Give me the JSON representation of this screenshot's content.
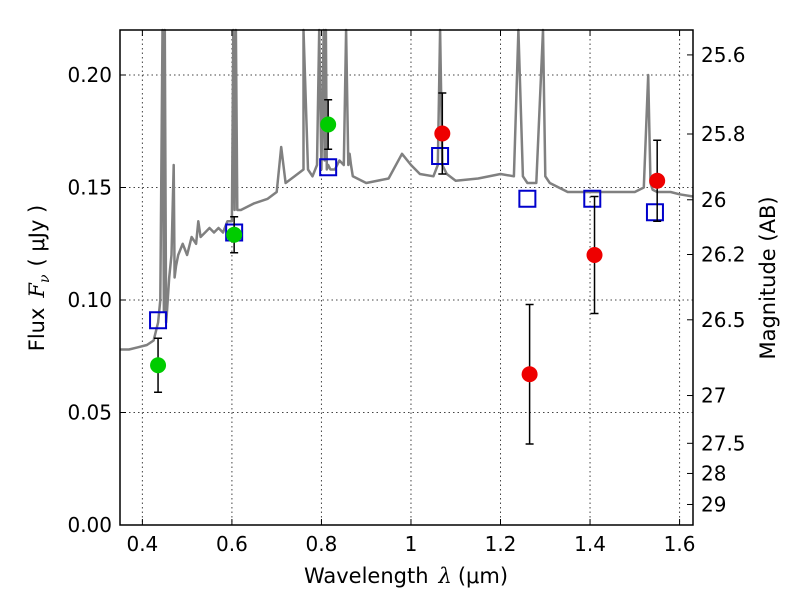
{
  "chart_data": {
    "type": "scatter",
    "title": "",
    "xlabel": "Wavelength  λ (μm)",
    "ylabel": "Flux  F_ν  ( μJy )",
    "ylabel_parts": {
      "flux": "Flux",
      "F": "F",
      "nu": "ν",
      "unit": "( μJy )"
    },
    "xlabel_parts": {
      "word": "Wavelength",
      "lambda": "λ",
      "unit": "(μm)"
    },
    "y2label": "Magnitude (AB)",
    "xlim": [
      0.35,
      1.63
    ],
    "ylim": [
      0.0,
      0.22
    ],
    "grid": true,
    "x_ticks": [
      0.4,
      0.6,
      0.8,
      1.0,
      1.2,
      1.4,
      1.6
    ],
    "x_tick_labels": [
      "0.4",
      "0.6",
      "0.8",
      "1",
      "1.2",
      "1.4",
      "1.6"
    ],
    "y_ticks": [
      0.0,
      0.05,
      0.1,
      0.15,
      0.2
    ],
    "y_tick_labels": [
      "0.00",
      "0.05",
      "0.10",
      "0.15",
      "0.20"
    ],
    "y2_ticks": [
      {
        "label": "25.6",
        "mag": 25.6
      },
      {
        "label": "25.8",
        "mag": 25.8
      },
      {
        "label": "26",
        "mag": 26.0
      },
      {
        "label": "26.2",
        "mag": 26.2
      },
      {
        "label": "26.5",
        "mag": 26.5
      },
      {
        "label": "27",
        "mag": 27.0
      },
      {
        "label": "27.5",
        "mag": 27.5
      },
      {
        "label": "28",
        "mag": 28.0
      },
      {
        "label": "29",
        "mag": 29.0
      }
    ],
    "series": [
      {
        "name": "model spectrum",
        "kind": "line",
        "color": "#808080",
        "x": [
          0.35,
          0.37,
          0.39,
          0.41,
          0.425,
          0.435,
          0.44,
          0.445,
          0.448,
          0.45,
          0.453,
          0.455,
          0.46,
          0.465,
          0.47,
          0.472,
          0.475,
          0.48,
          0.49,
          0.5,
          0.51,
          0.52,
          0.525,
          0.53,
          0.54,
          0.55,
          0.56,
          0.57,
          0.58,
          0.59,
          0.6,
          0.603,
          0.606,
          0.609,
          0.612,
          0.62,
          0.65,
          0.68,
          0.7,
          0.71,
          0.72,
          0.74,
          0.76,
          0.76,
          0.77,
          0.78,
          0.79,
          0.795,
          0.8,
          0.805,
          0.807,
          0.81,
          0.812,
          0.815,
          0.82,
          0.83,
          0.84,
          0.85,
          0.855,
          0.86,
          0.863,
          0.866,
          0.87,
          0.9,
          0.95,
          0.98,
          1.0,
          1.02,
          1.05,
          1.06,
          1.065,
          1.07,
          1.08,
          1.1,
          1.15,
          1.2,
          1.23,
          1.24,
          1.25,
          1.26,
          1.28,
          1.295,
          1.3,
          1.31,
          1.35,
          1.4,
          1.45,
          1.5,
          1.52,
          1.53,
          1.535,
          1.54,
          1.55,
          1.58,
          1.6,
          1.63
        ],
        "y": [
          0.078,
          0.078,
          0.079,
          0.08,
          0.082,
          0.09,
          0.1,
          0.22,
          0.095,
          0.22,
          0.09,
          0.095,
          0.11,
          0.12,
          0.16,
          0.11,
          0.115,
          0.12,
          0.125,
          0.12,
          0.128,
          0.125,
          0.135,
          0.128,
          0.13,
          0.132,
          0.13,
          0.132,
          0.13,
          0.135,
          0.135,
          0.22,
          0.14,
          0.22,
          0.14,
          0.14,
          0.143,
          0.145,
          0.148,
          0.168,
          0.152,
          0.155,
          0.158,
          0.22,
          0.158,
          0.155,
          0.16,
          0.22,
          0.158,
          0.22,
          0.162,
          0.22,
          0.158,
          0.16,
          0.158,
          0.158,
          0.162,
          0.16,
          0.22,
          0.16,
          0.165,
          0.16,
          0.155,
          0.152,
          0.154,
          0.165,
          0.16,
          0.156,
          0.155,
          0.16,
          0.22,
          0.16,
          0.156,
          0.153,
          0.154,
          0.156,
          0.155,
          0.22,
          0.155,
          0.152,
          0.152,
          0.22,
          0.155,
          0.152,
          0.148,
          0.148,
          0.148,
          0.148,
          0.15,
          0.2,
          0.152,
          0.149,
          0.148,
          0.148,
          0.147,
          0.146
        ]
      },
      {
        "name": "model photometry",
        "kind": "marker",
        "marker": "open-square",
        "color": "#0000cc",
        "x": [
          0.435,
          0.605,
          0.815,
          1.065,
          1.26,
          1.405,
          1.545
        ],
        "y": [
          0.091,
          0.13,
          0.159,
          0.164,
          0.145,
          0.145,
          0.139
        ]
      },
      {
        "name": "detections (optical)",
        "kind": "marker",
        "marker": "filled-circle",
        "color": "#00cc00",
        "x": [
          0.435,
          0.605,
          0.815
        ],
        "y": [
          0.071,
          0.129,
          0.178
        ],
        "yerr": [
          0.012,
          0.008,
          0.011
        ]
      },
      {
        "name": "detections (NIR)",
        "kind": "marker",
        "marker": "filled-circle",
        "color": "#ee0000",
        "x": [
          1.07,
          1.265,
          1.41,
          1.55
        ],
        "y": [
          0.174,
          0.067,
          0.12,
          0.153
        ],
        "yerr": [
          0.018,
          0.031,
          0.026,
          0.018
        ]
      }
    ]
  }
}
